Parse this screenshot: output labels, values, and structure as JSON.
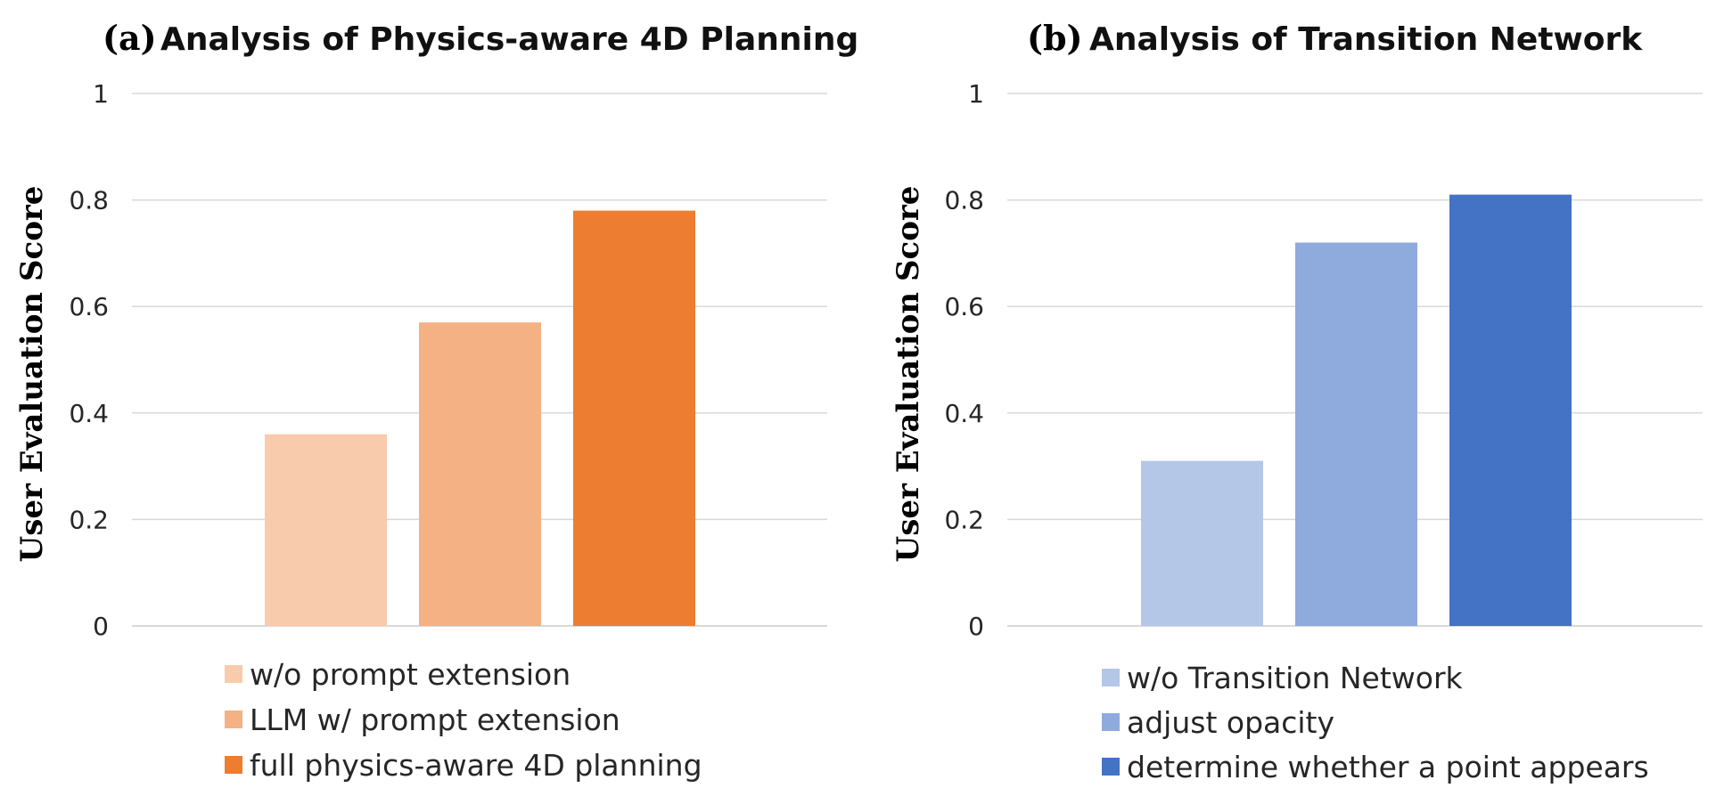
{
  "chart_data": [
    {
      "type": "bar",
      "panel_label": "(a)",
      "title": "Analysis of Physics-aware 4D Planning",
      "ylabel": "User Evaluation Score",
      "xlabel": "",
      "ylim": [
        0,
        1
      ],
      "yticks": [
        "0",
        "0.2",
        "0.4",
        "0.6",
        "0.8",
        "1"
      ],
      "grid": true,
      "legend_position": "bottom",
      "series": [
        {
          "name": "w/o prompt extension",
          "values": [
            0.36
          ],
          "color": "#F8CBAD"
        },
        {
          "name": "LLM w/ prompt extension",
          "values": [
            0.57
          ],
          "color": "#F4B183"
        },
        {
          "name": "full physics-aware 4D planning",
          "values": [
            0.78
          ],
          "color": "#ED7D31"
        }
      ]
    },
    {
      "type": "bar",
      "panel_label": "(b)",
      "title": "Analysis of Transition Network",
      "ylabel": "User Evaluation Score",
      "xlabel": "",
      "ylim": [
        0,
        1
      ],
      "yticks": [
        "0",
        "0.2",
        "0.4",
        "0.6",
        "0.8",
        "1"
      ],
      "grid": true,
      "legend_position": "bottom",
      "series": [
        {
          "name": "w/o Transition Network",
          "values": [
            0.31
          ],
          "color": "#B4C7E7"
        },
        {
          "name": "adjust opacity",
          "values": [
            0.72
          ],
          "color": "#8FAADC"
        },
        {
          "name": "determine whether a point appears",
          "values": [
            0.81
          ],
          "color": "#4472C4"
        }
      ]
    }
  ]
}
